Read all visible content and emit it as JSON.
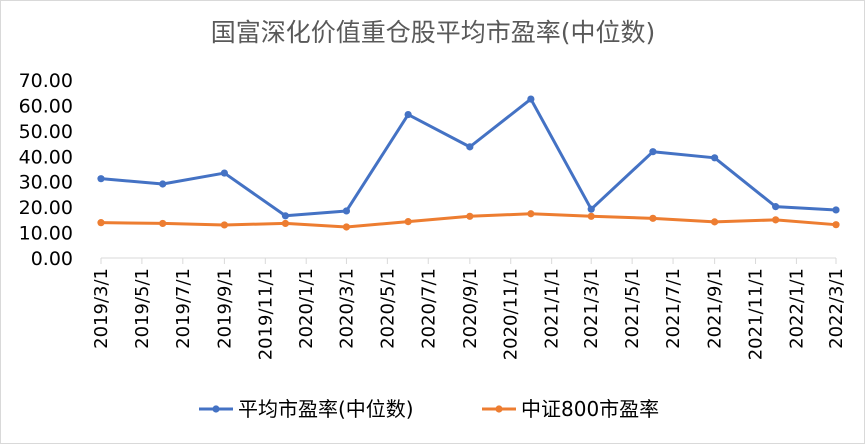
{
  "chart_data": {
    "type": "line",
    "title": "国富深化价值重仓股平均市盈率(中位数)",
    "xlabel": "",
    "ylabel": "",
    "ylim": [
      0,
      70
    ],
    "yticks": [
      "0.00",
      "10.00",
      "20.00",
      "30.00",
      "40.00",
      "50.00",
      "60.00",
      "70.00"
    ],
    "categories": [
      "2019/3/1",
      "2019/5/1",
      "2019/7/1",
      "2019/9/1",
      "2019/11/1",
      "2020/1/1",
      "2020/3/1",
      "2020/5/1",
      "2020/7/1",
      "2020/9/1",
      "2020/11/1",
      "2021/1/1",
      "2021/3/1",
      "2021/5/1",
      "2021/7/1",
      "2021/9/1",
      "2021/11/1",
      "2022/1/1",
      "2022/3/1"
    ],
    "series": [
      {
        "name": "平均市盈率(中位数)",
        "color": "#4472c4",
        "x": [
          "2019/3/1",
          "2019/6/1",
          "2019/9/1",
          "2019/12/1",
          "2020/3/1",
          "2020/6/1",
          "2020/9/1",
          "2020/12/1",
          "2021/3/1",
          "2021/6/1",
          "2021/9/1",
          "2021/12/1",
          "2022/3/1"
        ],
        "values": [
          31.2,
          29.1,
          33.4,
          16.6,
          18.5,
          56.4,
          43.7,
          62.5,
          19.2,
          41.8,
          39.4,
          20.2,
          18.9
        ]
      },
      {
        "name": "中证800市盈率",
        "color": "#ed7d31",
        "x": [
          "2019/3/1",
          "2019/6/1",
          "2019/9/1",
          "2019/12/1",
          "2020/3/1",
          "2020/6/1",
          "2020/9/1",
          "2020/12/1",
          "2021/3/1",
          "2021/6/1",
          "2021/9/1",
          "2021/12/1",
          "2022/3/1"
        ],
        "values": [
          13.9,
          13.6,
          13.0,
          13.6,
          12.2,
          14.3,
          16.4,
          17.4,
          16.4,
          15.6,
          14.2,
          15.0,
          13.1
        ]
      }
    ],
    "grid": false,
    "legend": "bottom"
  }
}
